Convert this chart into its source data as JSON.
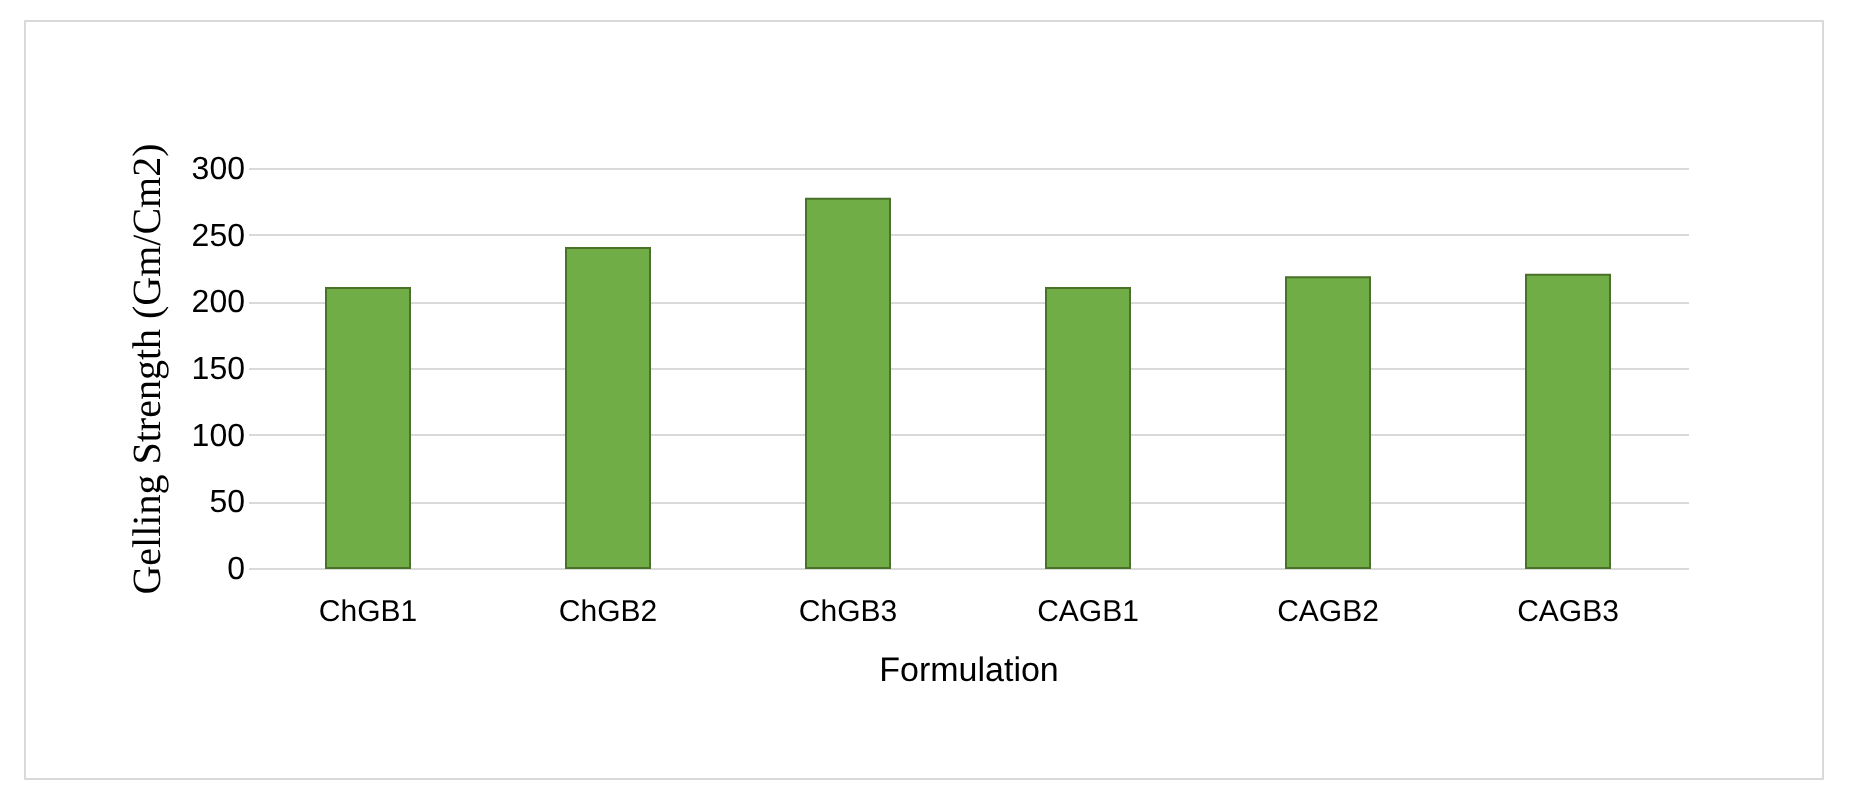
{
  "chart_data": {
    "type": "bar",
    "xlabel": "Formulation",
    "ylabel": "Gelling Strength (Gm/Cm2)",
    "categories": [
      "ChGB1",
      "ChGB2",
      "ChGB3",
      "CAGB1",
      "CAGB2",
      "CAGB3"
    ],
    "values": [
      210,
      240,
      277,
      210,
      218,
      220
    ],
    "color": "#70ad47",
    "ylim": [
      0,
      300
    ],
    "yticks": [
      0,
      50,
      100,
      150,
      200,
      250,
      300
    ],
    "grid": "y"
  }
}
